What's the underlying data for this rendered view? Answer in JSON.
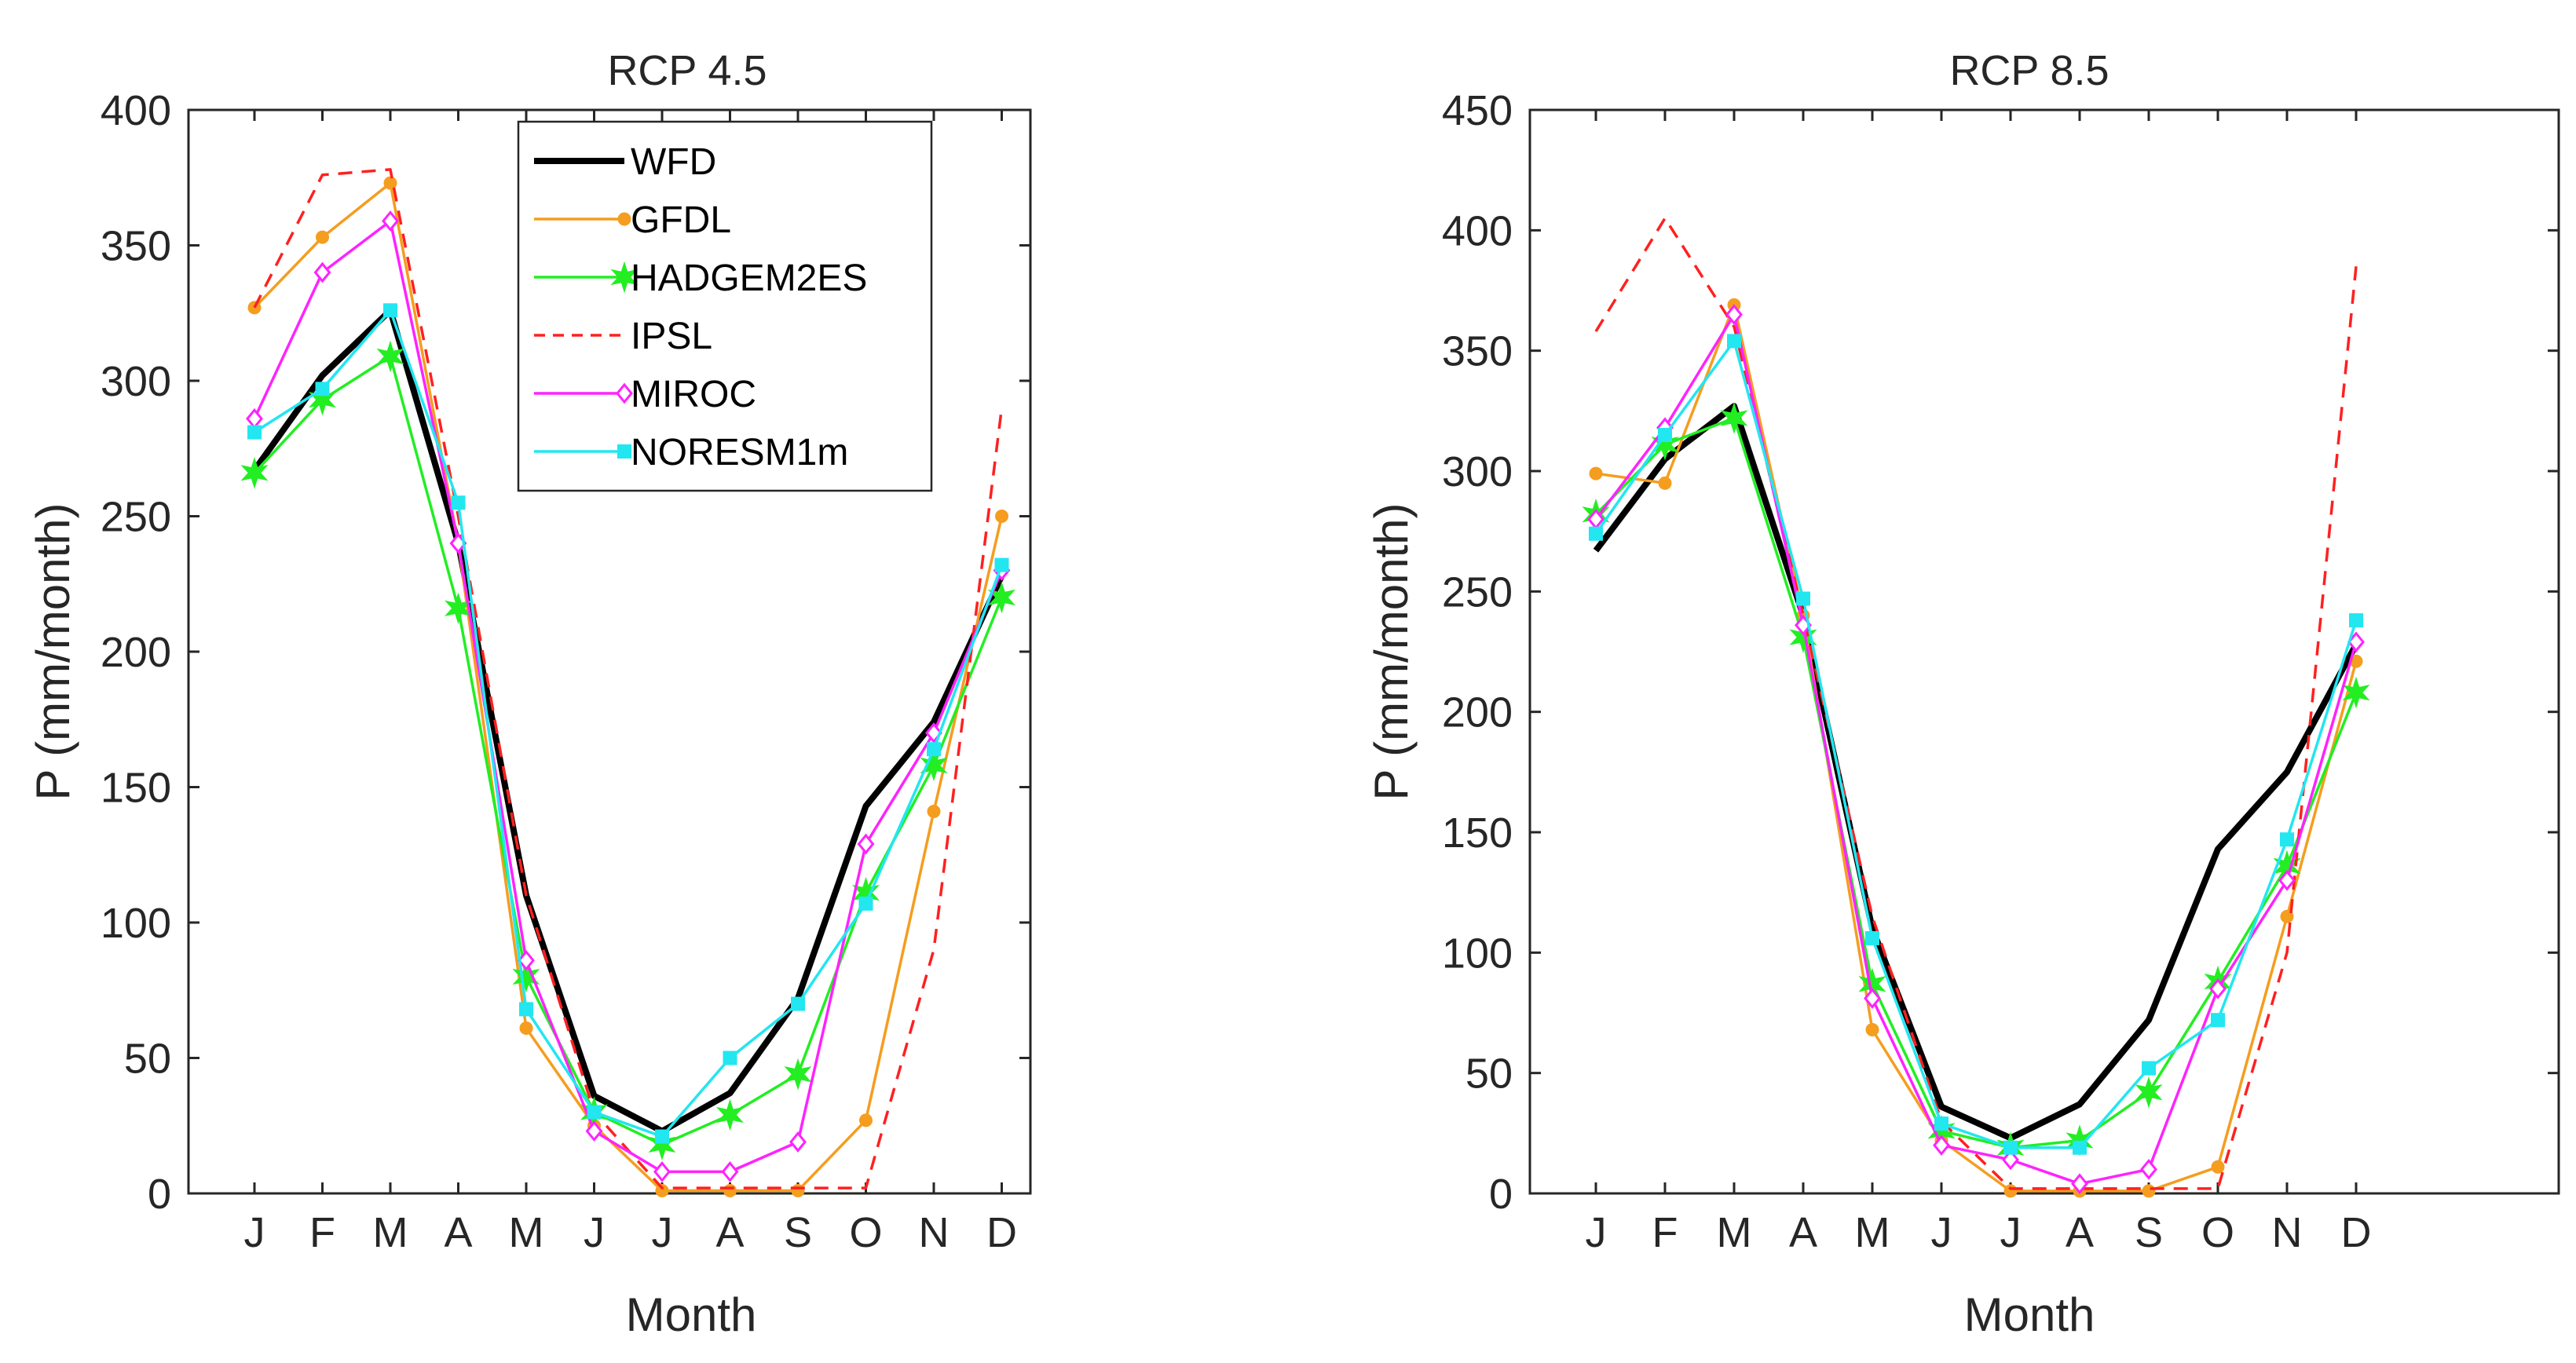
{
  "chart_data": [
    {
      "type": "line",
      "title": "RCP 4.5",
      "xlabel": "Month",
      "ylabel": "P (mm/month)",
      "categories": [
        "J",
        "F",
        "M",
        "A",
        "M",
        "J",
        "J",
        "A",
        "S",
        "O",
        "N",
        "D"
      ],
      "ylim": [
        0,
        400
      ],
      "yticks": [
        0,
        50,
        100,
        150,
        200,
        250,
        300,
        350,
        400
      ],
      "grid": false,
      "legend_position": "top-center",
      "series": [
        {
          "name": "WFD",
          "color": "#000000",
          "marker": "none",
          "dash": "solid",
          "values": [
            267,
            302,
            326,
            240,
            110,
            36,
            23,
            37,
            72,
            143,
            174,
            228
          ]
        },
        {
          "name": "GFDL",
          "color": "#f59d1f",
          "marker": "dot",
          "dash": "solid",
          "values": [
            327,
            353,
            373,
            240,
            61,
            25,
            1,
            1,
            1,
            27,
            141,
            250
          ]
        },
        {
          "name": "HADGEM2ES",
          "color": "#22ee22",
          "marker": "star",
          "dash": "solid",
          "values": [
            266,
            293,
            309,
            216,
            80,
            30,
            18,
            29,
            44,
            111,
            158,
            220
          ]
        },
        {
          "name": "IPSL",
          "color": "#ff2020",
          "marker": "none",
          "dash": "dashed",
          "values": [
            327,
            376,
            378,
            250,
            110,
            30,
            2,
            2,
            2,
            2,
            90,
            290
          ]
        },
        {
          "name": "MIROC",
          "color": "#ff22ff",
          "marker": "diamond",
          "dash": "solid",
          "values": [
            286,
            340,
            359,
            240,
            86,
            23,
            8,
            8,
            19,
            129,
            170,
            230
          ]
        },
        {
          "name": "NORESM1m",
          "color": "#22e6f0",
          "marker": "square",
          "dash": "solid",
          "values": [
            281,
            297,
            326,
            255,
            68,
            30,
            21,
            50,
            70,
            107,
            164,
            232
          ]
        }
      ]
    },
    {
      "type": "line",
      "title": "RCP 8.5",
      "xlabel": "Month",
      "ylabel": "P (mm/month)",
      "categories": [
        "J",
        "F",
        "M",
        "A",
        "M",
        "J",
        "J",
        "A",
        "S",
        "O",
        "N",
        "D"
      ],
      "ylim": [
        0,
        450
      ],
      "yticks": [
        0,
        50,
        100,
        150,
        200,
        250,
        300,
        350,
        400,
        450
      ],
      "grid": false,
      "series": [
        {
          "name": "WFD",
          "color": "#000000",
          "marker": "none",
          "dash": "solid",
          "values": [
            267,
            305,
            327,
            240,
            110,
            36,
            23,
            37,
            72,
            143,
            175,
            228
          ]
        },
        {
          "name": "GFDL",
          "color": "#f59d1f",
          "marker": "dot",
          "dash": "solid",
          "values": [
            299,
            295,
            369,
            240,
            68,
            22,
            1,
            1,
            1,
            11,
            115,
            221
          ]
        },
        {
          "name": "HADGEM2ES",
          "color": "#22ee22",
          "marker": "star",
          "dash": "solid",
          "values": [
            282,
            311,
            322,
            231,
            87,
            26,
            19,
            22,
            42,
            88,
            136,
            208
          ]
        },
        {
          "name": "IPSL",
          "color": "#ff2020",
          "marker": "none",
          "dash": "dashed",
          "values": [
            358,
            405,
            360,
            240,
            115,
            30,
            2,
            2,
            2,
            2,
            100,
            385
          ]
        },
        {
          "name": "MIROC",
          "color": "#ff22ff",
          "marker": "diamond",
          "dash": "solid",
          "values": [
            280,
            318,
            365,
            236,
            81,
            20,
            14,
            4,
            10,
            85,
            130,
            229
          ]
        },
        {
          "name": "NORESM1m",
          "color": "#22e6f0",
          "marker": "square",
          "dash": "solid",
          "values": [
            274,
            315,
            354,
            247,
            106,
            29,
            19,
            19,
            52,
            72,
            147,
            238
          ]
        }
      ]
    }
  ]
}
